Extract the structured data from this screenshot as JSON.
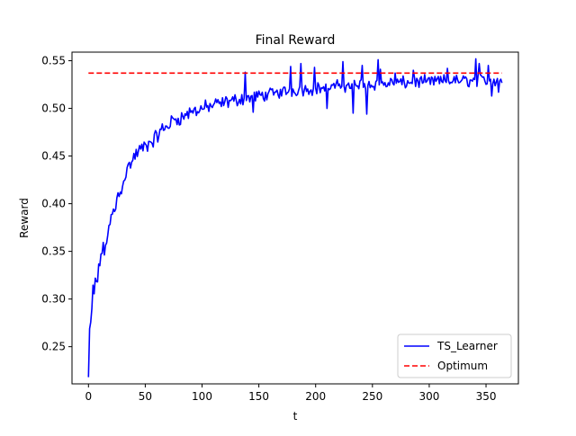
{
  "chart_data": {
    "type": "line",
    "title": "Final Reward",
    "xlabel": "t",
    "ylabel": "Reward",
    "xlim": [
      -14.5,
      378.5
    ],
    "ylim": [
      0.211,
      0.559
    ],
    "xticks": [
      0,
      50,
      100,
      150,
      200,
      250,
      300,
      350
    ],
    "yticks": [
      0.25,
      0.3,
      0.35,
      0.4,
      0.45,
      0.5,
      0.55
    ],
    "ytick_labels": [
      "0.25",
      "0.30",
      "0.35",
      "0.40",
      "0.45",
      "0.50",
      "0.55"
    ],
    "grid": false,
    "legend_position": "lower right",
    "series": [
      {
        "name": "TS_Learner",
        "color": "#0000ff",
        "style": "solid",
        "anchors": [
          [
            0,
            0.218
          ],
          [
            1,
            0.268
          ],
          [
            2,
            0.275
          ],
          [
            3,
            0.29
          ],
          [
            4,
            0.312
          ],
          [
            5,
            0.305
          ],
          [
            6,
            0.322
          ],
          [
            8,
            0.318
          ],
          [
            10,
            0.34
          ],
          [
            12,
            0.352
          ],
          [
            14,
            0.348
          ],
          [
            16,
            0.365
          ],
          [
            18,
            0.372
          ],
          [
            20,
            0.385
          ],
          [
            22,
            0.39
          ],
          [
            24,
            0.398
          ],
          [
            26,
            0.412
          ],
          [
            28,
            0.408
          ],
          [
            30,
            0.425
          ],
          [
            33,
            0.432
          ],
          [
            36,
            0.44
          ],
          [
            40,
            0.448
          ],
          [
            44,
            0.455
          ],
          [
            48,
            0.458
          ],
          [
            52,
            0.462
          ],
          [
            56,
            0.465
          ],
          [
            60,
            0.47
          ],
          [
            65,
            0.478
          ],
          [
            70,
            0.482
          ],
          [
            75,
            0.488
          ],
          [
            80,
            0.49
          ],
          [
            85,
            0.492
          ],
          [
            90,
            0.496
          ],
          [
            95,
            0.498
          ],
          [
            100,
            0.5
          ],
          [
            110,
            0.503
          ],
          [
            120,
            0.506
          ],
          [
            130,
            0.509
          ],
          [
            140,
            0.511
          ],
          [
            150,
            0.513
          ],
          [
            160,
            0.515
          ],
          [
            170,
            0.517
          ],
          [
            180,
            0.519
          ],
          [
            190,
            0.52
          ],
          [
            200,
            0.521
          ],
          [
            220,
            0.523
          ],
          [
            240,
            0.525
          ],
          [
            260,
            0.526
          ],
          [
            280,
            0.527
          ],
          [
            300,
            0.528
          ],
          [
            320,
            0.529
          ],
          [
            340,
            0.529
          ],
          [
            364,
            0.53
          ]
        ],
        "spikes": [
          [
            138,
            0.538
          ],
          [
            145,
            0.496
          ],
          [
            178,
            0.544
          ],
          [
            187,
            0.547
          ],
          [
            199,
            0.543
          ],
          [
            210,
            0.5
          ],
          [
            224,
            0.549
          ],
          [
            233,
            0.495
          ],
          [
            241,
            0.545
          ],
          [
            245,
            0.494
          ],
          [
            255,
            0.551
          ],
          [
            257,
            0.541
          ],
          [
            270,
            0.537
          ],
          [
            286,
            0.54
          ],
          [
            316,
            0.542
          ],
          [
            341,
            0.552
          ],
          [
            344,
            0.547
          ],
          [
            352,
            0.545
          ],
          [
            355,
            0.513
          ],
          [
            361,
            0.517
          ]
        ],
        "noise_amplitude": [
          [
            0,
            0.0
          ],
          [
            10,
            0.012
          ],
          [
            60,
            0.01
          ],
          [
            150,
            0.008
          ],
          [
            364,
            0.008
          ]
        ],
        "x_range": [
          0,
          364
        ]
      },
      {
        "name": "Optimum",
        "color": "#ff0000",
        "style": "dashed",
        "x": [
          0,
          364
        ],
        "y": [
          0.537,
          0.537
        ]
      }
    ]
  }
}
